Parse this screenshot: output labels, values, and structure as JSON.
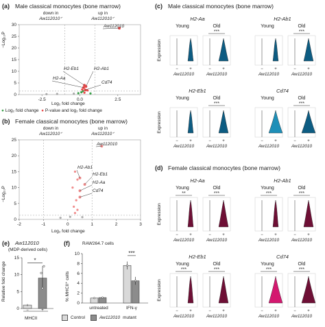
{
  "colors": {
    "blue": "#0d5c82",
    "blue_light": "#1e8fb8",
    "maroon": "#6e0f35",
    "pink": "#d4186f",
    "green": "#3aa04a",
    "red_point": "#e84a4a",
    "pink_point": "#f08c8c",
    "grey_bar": "#d9d9d9",
    "dark_bar": "#8c8c8c"
  },
  "panel_a": {
    "label": "(a)",
    "title": "Male classical monocytes (bone marrow)",
    "down_label": "down in",
    "down_gene": "Aw112010⁺",
    "up_label": "up in",
    "up_gene": "Aw112010⁺",
    "ylabel": "−Log₁₀P",
    "xlabel": "Log₂ fold change",
    "yticks": [
      "0",
      "5",
      "10",
      "15",
      "20",
      "25",
      "30"
    ],
    "xticks": [
      "-2.5",
      "0.0",
      "2.5"
    ],
    "annotations": [
      "Aw112010",
      "H2-Eb1",
      "H2-Ab1",
      "H2-Aa",
      "Cd74"
    ],
    "legend": [
      "Log₂ fold change",
      "P-value and log₂ fold change"
    ]
  },
  "panel_b": {
    "label": "(b)",
    "title": "Female classical monocytes (bone marrow)",
    "down_label": "down in",
    "down_gene": "Aw112010⁺",
    "up_label": "up in",
    "up_gene": "Aw112010⁺",
    "ylabel": "−Log₁₀P",
    "xlabel": "Log₂ fold change",
    "yticks": [
      "0",
      "5",
      "10",
      "15",
      "20",
      "25"
    ],
    "xticks": [
      "-2",
      "-1",
      "0",
      "1",
      "2",
      "3"
    ],
    "annotations": [
      "Aw112010",
      "H2-Ab1",
      "H2-Eb1",
      "H2-Aa",
      "Cd74"
    ]
  },
  "panel_c": {
    "label": "(c)",
    "title": "Male classical monocytes (bone marrow)",
    "ylabel": "Expression",
    "young": "Young",
    "old": "Old",
    "sig": "***",
    "minus": "−",
    "plus": "+",
    "xgene": "Aw112010",
    "genes": [
      "H2-Aa",
      "H2-Ab1",
      "H2-Eb1",
      "Cd74"
    ]
  },
  "panel_d": {
    "label": "(d)",
    "title": "Female classical monocytes (bone marrow)",
    "ylabel": "Expression",
    "young": "Young",
    "old": "Old",
    "sig_young": [
      "**",
      "***",
      "***",
      "***"
    ],
    "sig_old": [
      "***",
      "***",
      "***",
      "***"
    ],
    "minus": "−",
    "plus": "+",
    "xgene": "Aw112010",
    "genes": [
      "H2-Aa",
      "H2-Ab1",
      "H2-Eb1",
      "Cd74"
    ]
  },
  "panel_e": {
    "label": "(e)",
    "gene": "Aw112010",
    "subtitle": "(MDP-derived cells)",
    "ylabel": "Relative fold change",
    "yticks": [
      "0",
      "5",
      "10",
      "15"
    ],
    "xlabel": "MHCII",
    "sig": "*"
  },
  "panel_f": {
    "label": "(f)",
    "title": "RAW264.7 cells",
    "ylabel": "% MHCII⁺ cells",
    "yticks": [
      "0",
      "2",
      "4",
      "6",
      "8",
      "10"
    ],
    "groups": [
      "untreated",
      "IFN-γ"
    ],
    "sig": "***"
  },
  "legend_bottom": {
    "control": "Control",
    "mutant_gene": "Aw112010",
    "mutant_suffix": " mutant"
  },
  "chart_data": [
    {
      "type": "scatter",
      "title": "Male classical monocytes (bone marrow)",
      "xlabel": "Log₂ fold change",
      "ylabel": "−Log₁₀P",
      "xlim": [
        -4,
        4
      ],
      "ylim": [
        0,
        30
      ],
      "points": [
        {
          "label": "Aw112010",
          "x": 2.6,
          "y": 28.5
        },
        {
          "label": "H2-Eb1",
          "x": 0.3,
          "y": 4
        },
        {
          "label": "H2-Ab1",
          "x": 0.4,
          "y": 3.5
        },
        {
          "label": "H2-Aa",
          "x": 0.25,
          "y": 3
        },
        {
          "label": "Cd74",
          "x": 0.35,
          "y": 2
        }
      ]
    },
    {
      "type": "scatter",
      "title": "Female classical monocytes (bone marrow)",
      "xlabel": "Log₂ fold change",
      "ylabel": "−Log₁₀P",
      "xlim": [
        -2,
        3
      ],
      "ylim": [
        0,
        25
      ],
      "points": [
        {
          "label": "Aw112010",
          "x": 1.4,
          "y": 23
        },
        {
          "label": "H2-Ab1",
          "x": 0.5,
          "y": 13
        },
        {
          "label": "H2-Eb1",
          "x": 0.7,
          "y": 11
        },
        {
          "label": "H2-Aa",
          "x": 0.5,
          "y": 9
        },
        {
          "label": "Cd74",
          "x": 0.5,
          "y": 7
        }
      ]
    },
    {
      "type": "bar",
      "title": "Aw112010 (MDP-derived cells)",
      "ylabel": "Relative fold change",
      "categories": [
        "MHCII⁻",
        "MHCII⁺"
      ],
      "values": [
        1,
        9
      ],
      "ylim": [
        0,
        15
      ]
    },
    {
      "type": "bar",
      "title": "RAW264.7 cells",
      "ylabel": "% MHCII⁺ cells",
      "categories": [
        "untreated",
        "IFN-γ"
      ],
      "series": [
        {
          "name": "Control",
          "values": [
            1.0,
            7.6
          ]
        },
        {
          "name": "Aw112010 mutant",
          "values": [
            1.1,
            4.5
          ]
        }
      ],
      "ylim": [
        0,
        10
      ]
    }
  ]
}
